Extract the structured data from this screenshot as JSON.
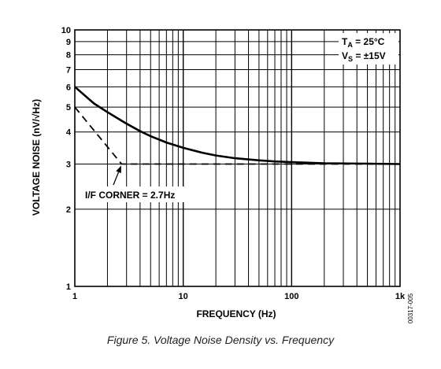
{
  "chart_data": {
    "type": "line",
    "x_scale": "log",
    "y_scale": "log",
    "xlim": [
      1,
      1000
    ],
    "ylim": [
      1,
      10
    ],
    "grid": true,
    "xlabel": "FREQUENCY (Hz)",
    "ylabel": "VOLTAGE NOISE (nV/√Hz)",
    "x_ticks": [
      {
        "value": 1,
        "label": "1"
      },
      {
        "value": 10,
        "label": "10"
      },
      {
        "value": 100,
        "label": "100"
      },
      {
        "value": 1000,
        "label": "1k"
      }
    ],
    "y_ticks": [
      {
        "value": 1,
        "label": "1"
      },
      {
        "value": 2,
        "label": "2"
      },
      {
        "value": 3,
        "label": "3"
      },
      {
        "value": 4,
        "label": "4"
      },
      {
        "value": 5,
        "label": "5"
      },
      {
        "value": 6,
        "label": "6"
      },
      {
        "value": 7,
        "label": "7"
      },
      {
        "value": 8,
        "label": "8"
      },
      {
        "value": 9,
        "label": "9"
      },
      {
        "value": 10,
        "label": "10"
      }
    ],
    "series": [
      {
        "style": "solid",
        "x": [
          1,
          1.5,
          2,
          3,
          4,
          5,
          7,
          10,
          15,
          20,
          30,
          50,
          70,
          100,
          200,
          500,
          1000
        ],
        "values": [
          6.0,
          5.17,
          4.78,
          4.31,
          4.03,
          3.85,
          3.64,
          3.47,
          3.32,
          3.24,
          3.16,
          3.1,
          3.07,
          3.05,
          3.02,
          3.01,
          3.0
        ]
      },
      {
        "style": "dashed",
        "x": [
          1,
          2.7,
          1000
        ],
        "values": [
          5.0,
          3.0,
          3.0
        ]
      }
    ],
    "annotations": {
      "corner_label": "I/F CORNER = 2.7Hz",
      "ta_label": "T",
      "ta_sub": "A",
      "ta_value": " = 25°C",
      "vs_label": "V",
      "vs_sub": "S",
      "vs_value": " = ±15V"
    }
  },
  "caption": "Figure 5. Voltage Noise Density vs. Frequency",
  "figure_id": "00317-005"
}
